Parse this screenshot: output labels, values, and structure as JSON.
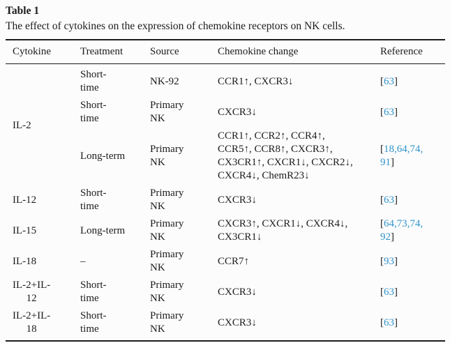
{
  "title": "Table 1",
  "caption": "The effect of cytokines on the expression of chemokine receptors on NK cells.",
  "link_color": "#3194cc",
  "columns": [
    "Cytokine",
    "Treatment",
    "Source",
    "Chemokine change",
    "Reference"
  ],
  "ref_brackets": {
    "open": "[",
    "close": "]"
  },
  "rows": [
    {
      "cytokine": "IL-2",
      "treatment": "Short-\ntime",
      "source": "NK-92",
      "change": "CCR1↑, CXCR3↓",
      "ref": "63"
    },
    {
      "treatment": "Short-\ntime",
      "source": "Primary\nNK",
      "change": "CXCR3↓",
      "ref": "63"
    },
    {
      "treatment": "Long-term",
      "source": "Primary\nNK",
      "change": "CCR1↑, CCR2↑, CCR4↑,\nCCR5↑, CCR8↑, CXCR3↑,\nCX3CR1↑, CXCR1↓, CXCR2↓,\nCXCR4↓, ChemR23↓",
      "ref": "18,64,74,\n91"
    },
    {
      "cytokine": "IL-12",
      "treatment": "Short-\ntime",
      "source": "Primary\nNK",
      "change": "CXCR3↓",
      "ref": "63"
    },
    {
      "cytokine": "IL-15",
      "treatment": "Long-term",
      "source": "Primary\nNK",
      "change": "CXCR3↑, CXCR1↓, CXCR4↓,\nCX3CR1↓",
      "ref": "64,73,74,\n92"
    },
    {
      "cytokine": "IL-18",
      "treatment": "–",
      "source": "Primary\nNK",
      "change": "CCR7↑",
      "ref": "93"
    },
    {
      "cytokine": "IL-2+IL-\n12",
      "treatment": "Short-\ntime",
      "source": "Primary\nNK",
      "change": "CXCR3↓",
      "ref": "63"
    },
    {
      "cytokine": "IL-2+IL-\n18",
      "treatment": "Short-\ntime",
      "source": "Primary\nNK",
      "change": "CXCR3↓",
      "ref": "63"
    }
  ]
}
